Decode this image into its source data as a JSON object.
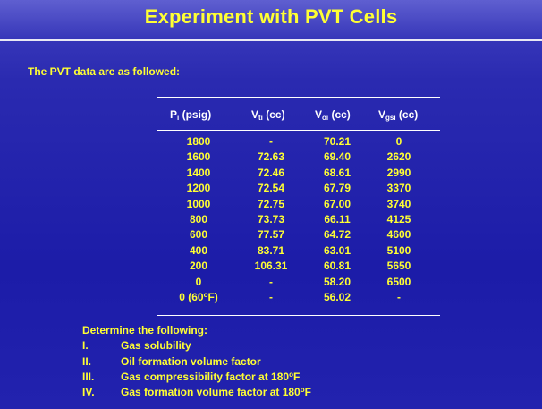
{
  "title": "Experiment with PVT Cells",
  "intro": "The PVT data are as followed:",
  "table": {
    "headers": [
      {
        "main": "P",
        "sub": "i",
        "unit": " (psig)"
      },
      {
        "main": "V",
        "sub": "ti",
        "unit": " (cc)"
      },
      {
        "main": "V",
        "sub": "oi",
        "unit": " (cc)"
      },
      {
        "main": "V",
        "sub": "gsi",
        "unit": " (cc)"
      }
    ],
    "rows": [
      [
        "1800",
        "-",
        "70.21",
        "0"
      ],
      [
        "1600",
        "72.63",
        "69.40",
        "2620"
      ],
      [
        "1400",
        "72.46",
        "68.61",
        "2990"
      ],
      [
        "1200",
        "72.54",
        "67.79",
        "3370"
      ],
      [
        "1000",
        "72.75",
        "67.00",
        "3740"
      ],
      [
        "800",
        "73.73",
        "66.11",
        "4125"
      ],
      [
        "600",
        "77.57",
        "64.72",
        "4600"
      ],
      [
        "400",
        "83.71",
        "63.01",
        "5100"
      ],
      [
        "200",
        "106.31",
        "60.81",
        "5650"
      ],
      [
        "0",
        "-",
        "58.20",
        "6500"
      ],
      [
        "0 (60",
        "-",
        "56.02",
        "-"
      ]
    ],
    "last_row_degree": "o",
    "last_row_suffix": "F)"
  },
  "tasks_title": "Determine the following:",
  "tasks": [
    {
      "num": "I.",
      "text": "Gas solubility",
      "deg": "",
      "after": ""
    },
    {
      "num": "II.",
      "text": "Oil formation volume factor",
      "deg": "",
      "after": ""
    },
    {
      "num": "III.",
      "text": "Gas compressibility factor at 180",
      "deg": "o",
      "after": "F"
    },
    {
      "num": "IV.",
      "text": "Gas formation volume factor at 180",
      "deg": "o",
      "after": "F"
    }
  ]
}
